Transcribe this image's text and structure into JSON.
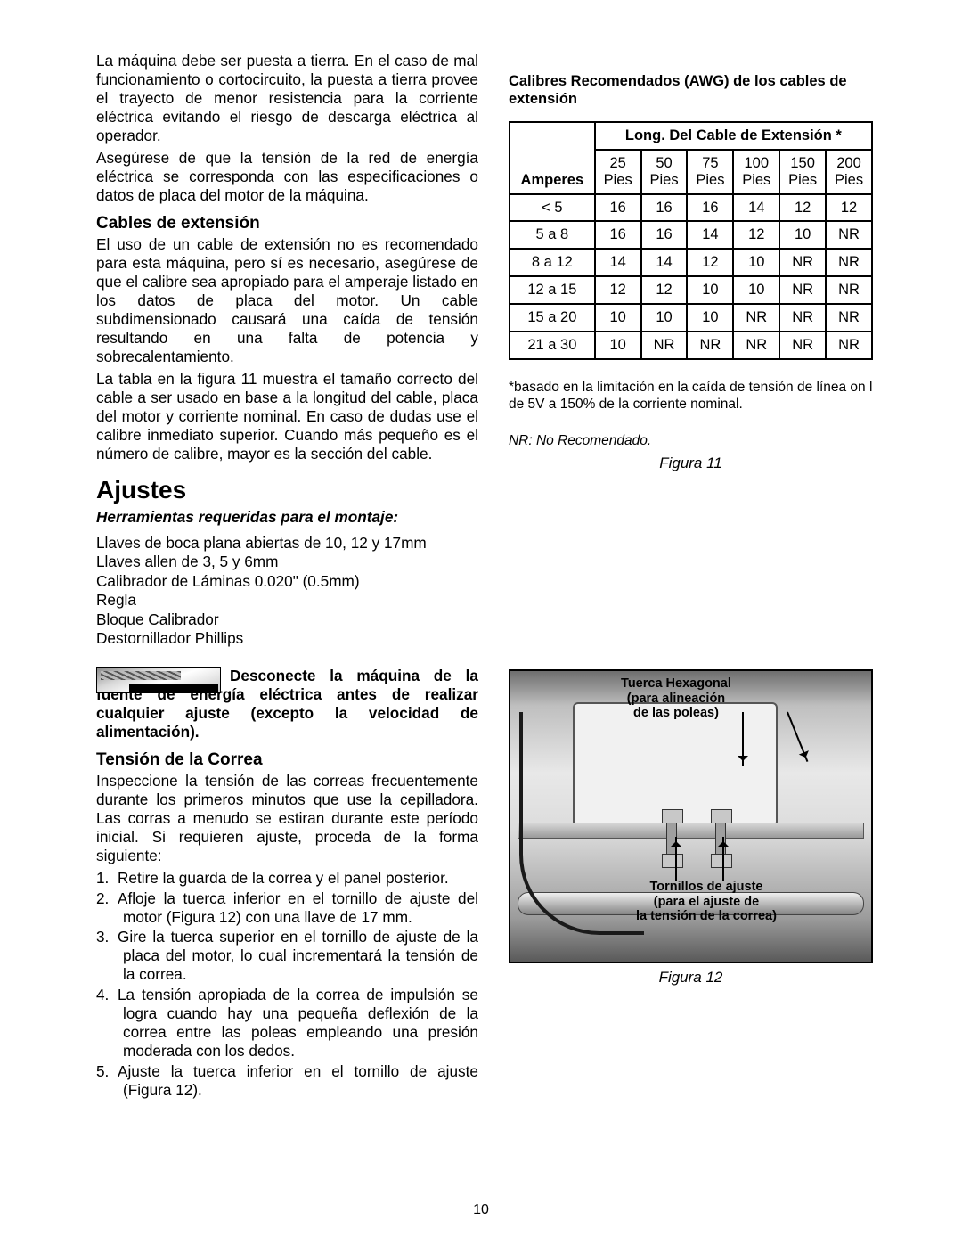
{
  "left": {
    "p1": "La máquina debe ser puesta a tierra. En el caso de mal funcionamiento o cortocircuito, la puesta a tierra provee el trayecto de menor resistencia para la corriente eléctrica evitando el riesgo de descarga eléctrica al operador.",
    "p2": "Asegúrese de que la tensión de la red de energía eléctrica se corresponda con las especificaciones o datos de placa del motor de la máquina.",
    "h_cables": "Cables de extensión",
    "p3": "El uso de un cable de extensión no es recomendado para esta máquina, pero sí es necesario, asegúrese de que el calibre sea apropiado para el amperaje listado en los datos de placa del motor. Un cable subdimensionado causará una caída de tensión resultando en una falta de potencia y sobrecalentamiento.",
    "p4": "La tabla en la figura 11 muestra el tamaño correcto del cable a ser usado en base a la longitud del cable, placa del motor y corriente nominal. En caso de dudas use el calibre inmediato superior. Cuando más pequeño es el número de calibre, mayor es la sección del cable.",
    "h_ajustes": "Ajustes",
    "h_herr": "Herramientas requeridas para el montaje:",
    "tools": [
      "Llaves de boca plana abiertas de 10, 12 y 17mm",
      "Llaves allen de 3, 5 y 6mm",
      "Calibrador de Láminas 0.020\" (0.5mm)",
      "Regla",
      "Bloque Calibrador",
      "Destornillador Phillips"
    ],
    "warn": "Desconecte la máquina de la fuente de energía eléctrica antes de realizar cualquier ajuste (excepto la velocidad de alimentación).",
    "h_tension": "Tensión de la Correa",
    "p5": "Inspeccione la tensión de las correas frecuentemente durante los primeros minutos que use la cepilladora. Las corras a menudo se estiran durante este período inicial. Si requieren ajuste, proceda de la forma siguiente:",
    "steps": [
      "Retire la guarda de la correa y el panel posterior.",
      "Afloje la tuerca inferior en el tornillo de ajuste del motor (Figura 12) con una llave de 17 mm.",
      "Gire la tuerca superior en el tornillo de ajuste de la placa del motor, lo cual incrementará la tensión de la correa.",
      "La tensión apropiada de la correa de impulsión se logra cuando hay una pequeña deflexión de la correa entre las poleas empleando una presión moderada con los dedos.",
      "Ajuste la tuerca inferior en el tornillo de ajuste (Figura 12)."
    ]
  },
  "right": {
    "table_title": "Calibres Recomendados (AWG) de los cables de extensión",
    "col_merged": "Long. Del Cable de Extensión *",
    "amperes": "Amperes",
    "headers": [
      "25\nPies",
      "50\nPies",
      "75\nPies",
      "100\nPies",
      "150\nPies",
      "200\nPies"
    ],
    "rows": [
      {
        "a": "< 5",
        "v": [
          "16",
          "16",
          "16",
          "14",
          "12",
          "12"
        ]
      },
      {
        "a": "5 a 8",
        "v": [
          "16",
          "16",
          "14",
          "12",
          "10",
          "NR"
        ]
      },
      {
        "a": "8 a 12",
        "v": [
          "14",
          "14",
          "12",
          "10",
          "NR",
          "NR"
        ]
      },
      {
        "a": "12 a 15",
        "v": [
          "12",
          "12",
          "10",
          "10",
          "NR",
          "NR"
        ]
      },
      {
        "a": "15 a 20",
        "v": [
          "10",
          "10",
          "10",
          "NR",
          "NR",
          "NR"
        ]
      },
      {
        "a": "21 a 30",
        "v": [
          "10",
          "NR",
          "NR",
          "NR",
          "NR",
          "NR"
        ]
      }
    ],
    "footnote1": "*basado en la limitación en la caída de tensión de línea on l de 5V a 150% de la corriente nominal.",
    "footnote2": "NR: No Recomendado.",
    "fig11": "Figura 11",
    "fig12_label1": "Tuerca Hexagonal\n(para alineación\nde las poleas)",
    "fig12_label2": "Tornillos de ajuste\n(para el ajuste de\nla tensión de la correa)",
    "fig12": "Figura 12"
  },
  "page_number": "10"
}
